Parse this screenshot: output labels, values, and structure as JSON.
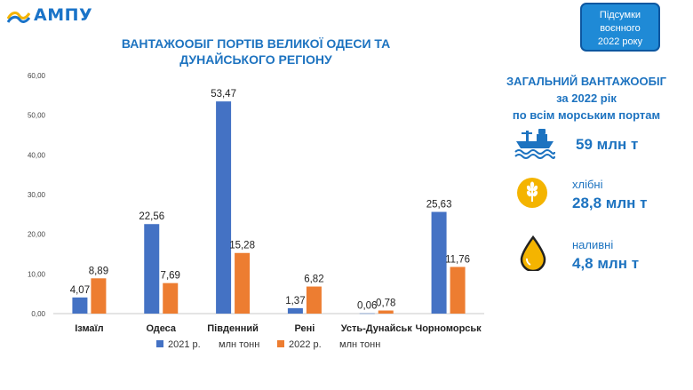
{
  "logo": {
    "text": "АМПУ",
    "color": "#1a73c8"
  },
  "badge": {
    "lines": [
      "Підсумки",
      "воєнного",
      "2022 року"
    ],
    "background": "#1f8ad6"
  },
  "chart_data": {
    "type": "bar",
    "title_lines": [
      "ВАНТАЖООБІГ ПОРТІВ ВЕЛИКОЇ ОДЕСИ ТА",
      "ДУНАЙСЬКОГО РЕГІОНУ"
    ],
    "categories": [
      "Ізмаїл",
      "Одеса",
      "Південний",
      "Рені",
      "Усть-Дунайськ",
      "Чорноморськ"
    ],
    "series": [
      {
        "name": "2021 р.",
        "unit": "млн тонн",
        "color": "#4472c4",
        "values": [
          4.07,
          22.56,
          53.47,
          1.37,
          0.06,
          25.63
        ],
        "labels": [
          "4,07",
          "22,56",
          "53,47",
          "1,37",
          "0,06",
          "25,63"
        ]
      },
      {
        "name": "2022 р.",
        "unit": "млн тонн",
        "color": "#ed7d31",
        "values": [
          8.89,
          7.69,
          15.28,
          6.82,
          0.78,
          11.76
        ],
        "labels": [
          "8,89",
          "7,69",
          "15,28",
          "6,82",
          "0,78",
          "11,76"
        ]
      }
    ],
    "ylim": [
      0,
      60
    ],
    "yticks": [
      "0,00",
      "10,00",
      "20,00",
      "30,00",
      "40,00",
      "50,00",
      "60,00"
    ],
    "grid": false,
    "legend": "bottom"
  },
  "summary": {
    "title_lines": [
      "ЗАГАЛЬНИЙ ВАНТАЖООБІГ",
      "за 2022 рік",
      "по всім морським портам"
    ],
    "total": {
      "icon": "ship-icon",
      "value": "59 млн т"
    },
    "grain": {
      "icon": "wheat-icon",
      "label": "хлібні",
      "value": "28,8 млн т"
    },
    "liquid": {
      "icon": "oil-drop-icon",
      "label": "наливні",
      "value": "4,8 млн т"
    }
  },
  "colors": {
    "accent": "#1d73c0",
    "gold": "#f4b400"
  }
}
